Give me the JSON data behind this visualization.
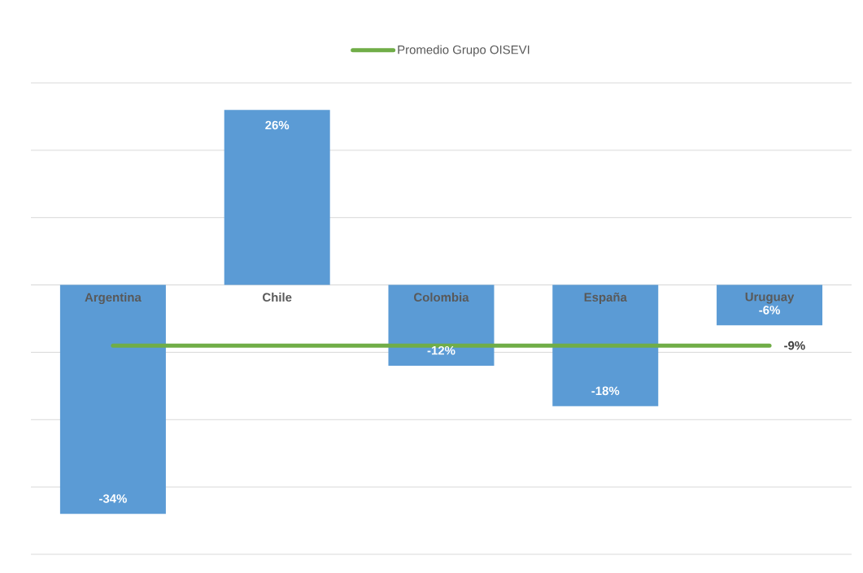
{
  "chart_data": {
    "type": "bar",
    "categories": [
      "Argentina",
      "Chile",
      "Colombia",
      "España",
      "Uruguay"
    ],
    "ylim": [
      -40,
      30
    ],
    "yticks": [
      {
        "value": -40,
        "label": null
      },
      {
        "value": -30,
        "label": null
      },
      {
        "value": -20,
        "label": null
      },
      {
        "value": -10,
        "label": null
      },
      {
        "value": 0,
        "label": null
      },
      {
        "value": 10,
        "label": null
      },
      {
        "value": 20,
        "label": null
      },
      {
        "value": 30,
        "label": null
      }
    ],
    "grid": "y",
    "legend": "top",
    "tick_labels": "x",
    "series": [
      {
        "color": "#5b9bd5",
        "values": [
          -34,
          26,
          -12,
          -18,
          -6
        ],
        "value_labels": [
          "-34%",
          "26%",
          "-12%",
          "-18%",
          "-6%"
        ]
      },
      {
        "type": "line",
        "name": "Promedio Grupo OISEVI",
        "color": "#70ad47",
        "values": [
          -9,
          -9,
          -9,
          -9,
          -9
        ],
        "value_labels": [
          null,
          null,
          null,
          null,
          "-9%"
        ]
      }
    ]
  }
}
